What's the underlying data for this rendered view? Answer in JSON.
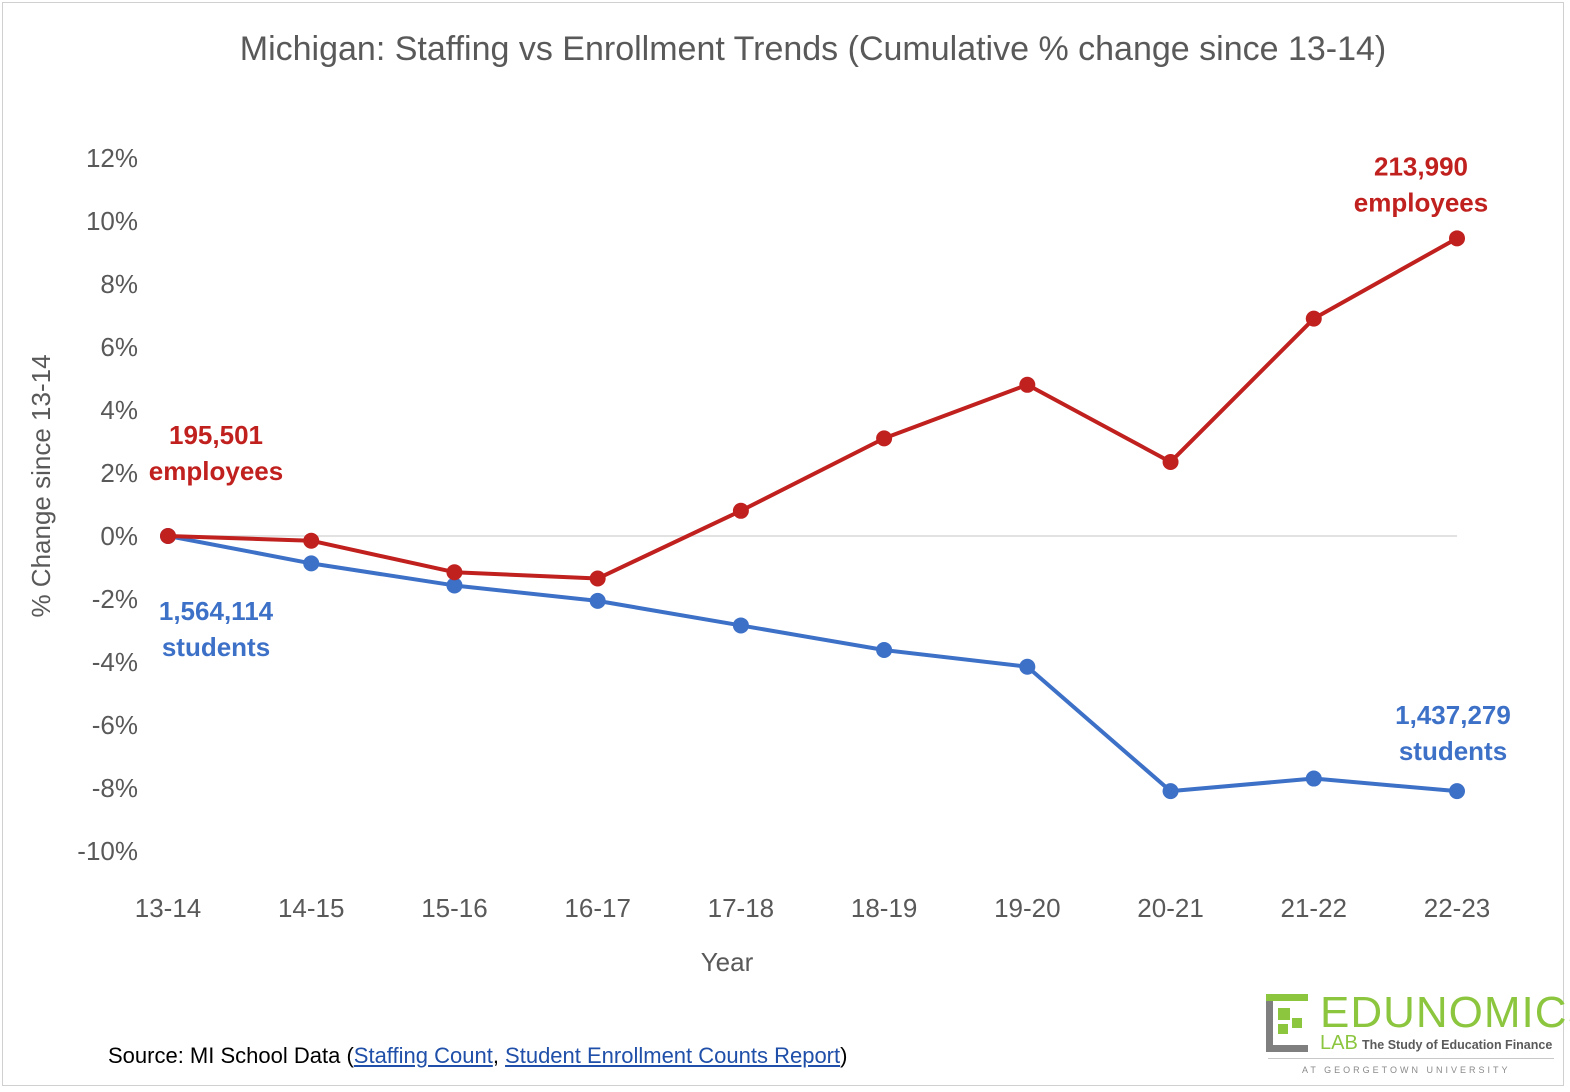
{
  "chart_data": {
    "type": "line",
    "title": "Michigan: Staffing vs Enrollment Trends (Cumulative % change since 13-14)",
    "xlabel": "Year",
    "ylabel": "% Change since 13-14",
    "categories": [
      "13-14",
      "14-15",
      "15-16",
      "16-17",
      "17-18",
      "18-19",
      "19-20",
      "20-21",
      "21-22",
      "22-23"
    ],
    "ylim": [
      -10,
      12
    ],
    "yticks": [
      12,
      10,
      8,
      6,
      4,
      2,
      0,
      -2,
      -4,
      -6,
      -8,
      -10
    ],
    "ytick_labels": [
      "12%",
      "10%",
      "8%",
      "6%",
      "4%",
      "2%",
      "0%",
      "-2%",
      "-4%",
      "-6%",
      "-8%",
      "-10%"
    ],
    "grid": "zero-line only",
    "series": [
      {
        "name": "employees",
        "color": "#c0201e",
        "values": [
          0.0,
          -0.15,
          -1.15,
          -1.35,
          0.8,
          3.1,
          4.8,
          2.35,
          6.9,
          9.45
        ]
      },
      {
        "name": "students",
        "color": "#3d70c7",
        "values": [
          0.0,
          -0.87,
          -1.57,
          -2.06,
          -2.84,
          -3.62,
          -4.15,
          -8.1,
          -7.7,
          -8.1
        ]
      }
    ],
    "annotations": [
      {
        "series": "employees",
        "point": "13-14",
        "line1": "195,501",
        "line2": "employees"
      },
      {
        "series": "employees",
        "point": "22-23",
        "line1": "213,990",
        "line2": "employees"
      },
      {
        "series": "students",
        "point": "13-14",
        "line1": "1,564,114",
        "line2": "students"
      },
      {
        "series": "students",
        "point": "22-23",
        "line1": "1,437,279",
        "line2": "students"
      }
    ]
  },
  "source": {
    "prefix": "Source: MI School Data (",
    "link1": "Staffing Count",
    "separator": ", ",
    "link2": "Student Enrollment Counts Report",
    "suffix": ")"
  },
  "logo": {
    "wordmark": "EDUNOMICS",
    "lab": "LAB",
    "tagline": "The Study of Education Finance",
    "subline": "AT GEORGETOWN UNIVERSITY",
    "colors": {
      "green": "#8cc63f",
      "gray": "#7f7f7f"
    }
  }
}
